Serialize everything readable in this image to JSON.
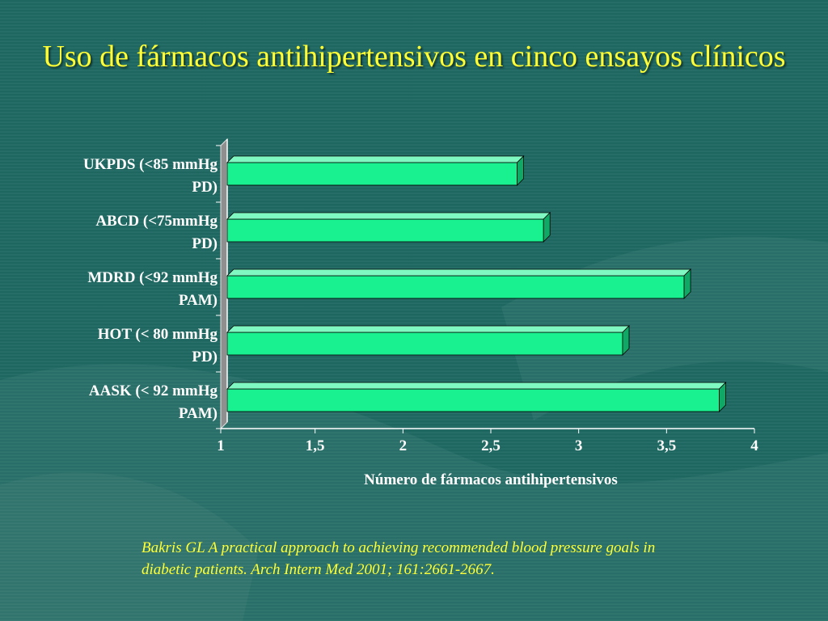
{
  "slide": {
    "title": "Uso de fármacos antihipertensivos en cinco ensayos clínicos",
    "citation_line1": "Bakris GL A practical approach to achieving recommended blood pressure goals in",
    "citation_line2": "diabetic patients. Arch Intern Med 2001; 161:2661-2667.",
    "colors": {
      "background": "#1f6a63",
      "title": "#ffff33",
      "bar": "#19f08f",
      "text": "#ffffff"
    }
  },
  "chart_data": {
    "type": "bar",
    "orientation": "horizontal",
    "categories": [
      [
        "UKPDS (<85 mmHg",
        "PD)"
      ],
      [
        "ABCD (<75mmHg",
        "PD)"
      ],
      [
        "MDRD (<92 mmHg",
        "PAM)"
      ],
      [
        "HOT (< 80 mmHg",
        "PD)"
      ],
      [
        "AASK (< 92 mmHg",
        "PAM)"
      ]
    ],
    "values": [
      2.65,
      2.8,
      3.6,
      3.25,
      3.8
    ],
    "xlabel": "Número de fármacos antihipertensivos",
    "ylabel": "",
    "xlim": [
      1,
      4
    ],
    "xticks": [
      1,
      1.5,
      2,
      2.5,
      3,
      3.5,
      4
    ],
    "xtick_labels": [
      "1",
      "1,5",
      "2",
      "2,5",
      "3",
      "3,5",
      "4"
    ],
    "grid": false,
    "legend": "none",
    "style": "3d"
  }
}
